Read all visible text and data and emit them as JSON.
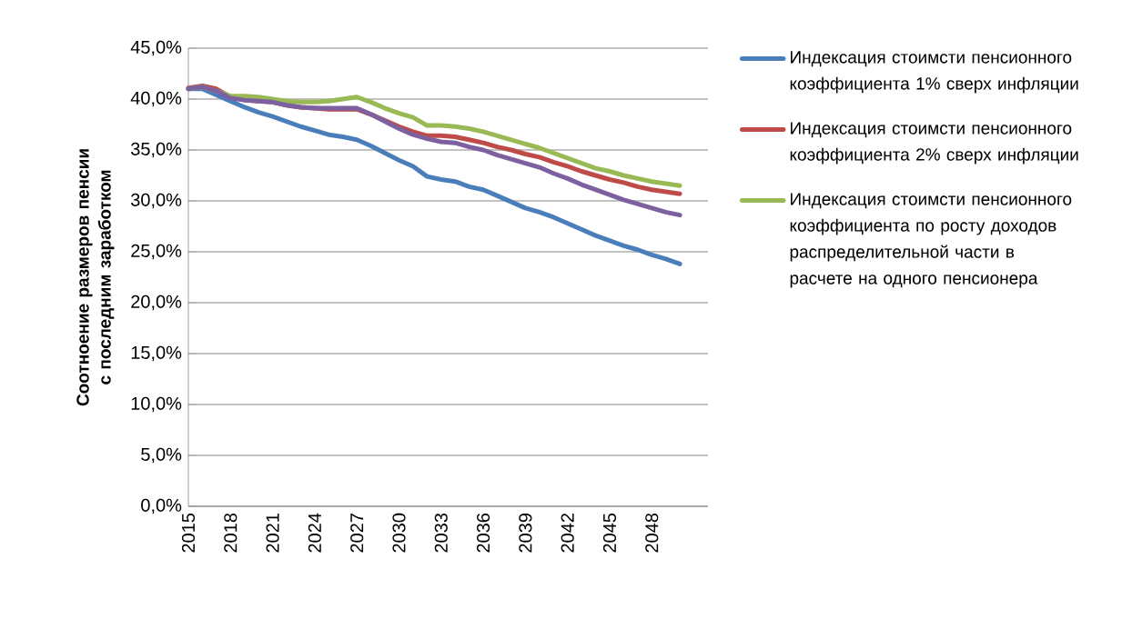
{
  "chart_data": {
    "type": "line",
    "ylabel": "Соотноение размеров  пенсии с последним заработком",
    "categories": [
      "2015",
      null,
      null,
      "2018",
      null,
      null,
      "2021",
      null,
      null,
      "2024",
      null,
      null,
      "2027",
      null,
      null,
      "2030",
      null,
      null,
      "2033",
      null,
      null,
      "2036",
      null,
      null,
      "2039",
      null,
      null,
      "2042",
      null,
      null,
      "2045",
      null,
      null,
      "2048",
      null,
      null
    ],
    "ylim": [
      0,
      45
    ],
    "yticks": [
      {
        "value": 0,
        "label": "0,0%"
      },
      {
        "value": 5,
        "label": "5,0%"
      },
      {
        "value": 10,
        "label": "10,0%"
      },
      {
        "value": 15,
        "label": "15,0%"
      },
      {
        "value": 20,
        "label": "20,0%"
      },
      {
        "value": 25,
        "label": "25,0%"
      },
      {
        "value": 30,
        "label": "30,0%"
      },
      {
        "value": 35,
        "label": "35,0%"
      },
      {
        "value": 40,
        "label": "40,0%"
      },
      {
        "value": 45,
        "label": "45,0%"
      }
    ],
    "grid": "y",
    "legend": "right",
    "series": [
      {
        "name": "Индексация стоимсти пенсионного коэффициента 1% сверх инфляции",
        "color": "#4a7ebb",
        "values": [
          41.0,
          41.0,
          40.4,
          39.8,
          39.2,
          38.7,
          38.3,
          37.8,
          37.3,
          36.9,
          36.5,
          36.3,
          36.0,
          35.4,
          34.7,
          34.0,
          33.4,
          32.4,
          32.1,
          31.9,
          31.4,
          31.1,
          30.5,
          29.9,
          29.3,
          28.9,
          28.4,
          27.8,
          27.2,
          26.6,
          26.1,
          25.6,
          25.2,
          24.7,
          24.3,
          23.8
        ]
      },
      {
        "name": "Индексация стоимсти пенсионного коэффициента 2% сверх инфляции",
        "color": "#be4b48",
        "values": [
          41.1,
          41.3,
          41.0,
          40.2,
          39.9,
          39.8,
          39.7,
          39.4,
          39.2,
          39.1,
          39.0,
          39.0,
          39.0,
          38.5,
          37.9,
          37.3,
          36.8,
          36.4,
          36.4,
          36.3,
          36.0,
          35.7,
          35.3,
          35.0,
          34.6,
          34.3,
          33.8,
          33.4,
          32.9,
          32.5,
          32.1,
          31.8,
          31.4,
          31.1,
          30.9,
          30.7
        ]
      },
      {
        "name": "Индексация стоимсти пенсионного коэффициента по росту доходов распределительной части в расчете на одного пенсионера",
        "color": "#98b954",
        "values": [
          41.0,
          41.2,
          40.8,
          40.3,
          40.3,
          40.2,
          40.0,
          39.8,
          39.7,
          39.7,
          39.8,
          40.0,
          40.2,
          39.7,
          39.1,
          38.6,
          38.2,
          37.4,
          37.4,
          37.3,
          37.1,
          36.8,
          36.4,
          36.0,
          35.6,
          35.2,
          34.7,
          34.2,
          33.7,
          33.2,
          32.9,
          32.5,
          32.2,
          31.9,
          31.7,
          31.5
        ]
      },
      {
        "color": "#7d60a0",
        "values": [
          41.0,
          41.2,
          40.8,
          40.1,
          39.9,
          39.8,
          39.7,
          39.4,
          39.2,
          39.1,
          39.1,
          39.1,
          39.1,
          38.5,
          37.8,
          37.1,
          36.5,
          36.1,
          35.8,
          35.7,
          35.3,
          35.0,
          34.5,
          34.1,
          33.7,
          33.3,
          32.7,
          32.2,
          31.6,
          31.1,
          30.6,
          30.1,
          29.7,
          29.3,
          28.9,
          28.6
        ]
      }
    ]
  }
}
